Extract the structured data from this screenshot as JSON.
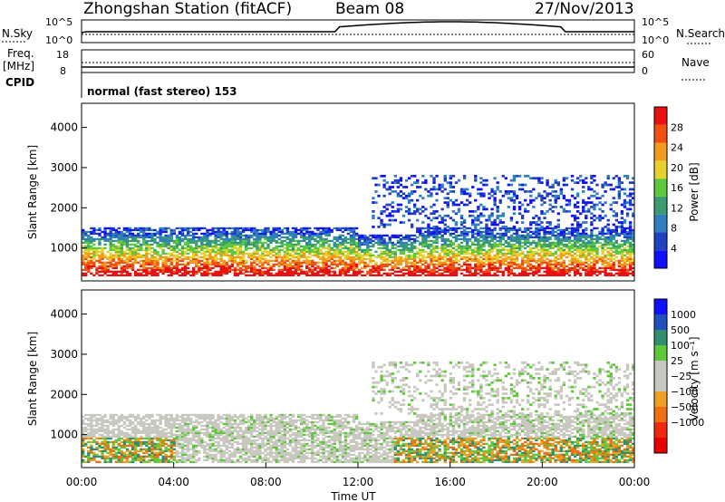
{
  "header": {
    "station": "Zhongshan Station (fitACF)",
    "beam": "Beam 08",
    "date": "27/Nov/2013"
  },
  "top_strip": {
    "nsky_label": "N.Sky",
    "nsearch_label": "N.Search",
    "left_ticks": [
      "10^5",
      "10^0"
    ],
    "right_ticks": [
      "10^5",
      "10^0"
    ],
    "freq_label": "Freq.",
    "freq_unit": "[MHz]",
    "freq_ticks": [
      "18",
      "8"
    ],
    "nave_label": "Nave",
    "nave_ticks": [
      "60",
      "0"
    ],
    "cpid_label": "CPID",
    "cpid_value": "normal (fast stereo) 153"
  },
  "chart_data": [
    {
      "type": "heatmap",
      "title": "",
      "ylabel": "Slant Range [km]",
      "ylim": [
        180,
        4600
      ],
      "yticks": [
        "1000",
        "2000",
        "3000",
        "4000"
      ],
      "colorbar": {
        "label": "Power [dB]",
        "ticks": [
          "4",
          "8",
          "12",
          "16",
          "20",
          "24",
          "28"
        ],
        "colors": [
          "#1010ff",
          "#2040c0",
          "#2f7fc0",
          "#3a9c70",
          "#5cc83c",
          "#e6d22a",
          "#f49a1a",
          "#f05010",
          "#e81010"
        ]
      }
    },
    {
      "type": "heatmap",
      "title": "",
      "ylabel": "Slant Range [km]",
      "xlabel": "Time UT",
      "ylim": [
        180,
        4600
      ],
      "yticks": [
        "1000",
        "2000",
        "3000",
        "4000"
      ],
      "xticks": [
        "00:00",
        "04:00",
        "08:00",
        "12:00",
        "16:00",
        "20:00",
        "00:00"
      ],
      "colorbar": {
        "label": "Velocity [m s⁻¹]",
        "ticks": [
          "1000",
          "500",
          "100",
          "25",
          "−25",
          "−100",
          "−500",
          "−1000"
        ],
        "colors": [
          "#1010ff",
          "#2050c0",
          "#2f8f6f",
          "#5fc83a",
          "#c8c8c0",
          "#c8c8c0",
          "#f0a020",
          "#f07010",
          "#f02810",
          "#e80000"
        ]
      }
    }
  ]
}
